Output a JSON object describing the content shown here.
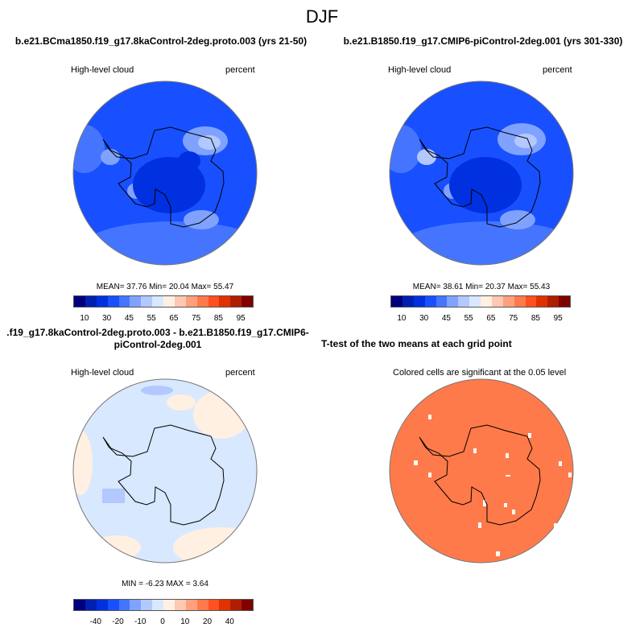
{
  "figure_title": "DJF",
  "colors": [
    "#00007f",
    "#0020b0",
    "#0030e0",
    "#1850ff",
    "#4575ff",
    "#80a2ff",
    "#b3c8ff",
    "#d8e8ff",
    "#fff0e2",
    "#ffc8b0",
    "#ffa07c",
    "#ff7a4a",
    "#ff5020",
    "#e03200",
    "#b01e00",
    "#800000"
  ],
  "panels": [
    {
      "title": "b.e21.BCma1850.f19_g17.8kaControl-2deg.proto.003 (yrs 21-50)",
      "left_label": "High-level cloud",
      "right_label": "percent",
      "stats": "MEAN=  37.76  Min=  20.04  Max=  55.47",
      "ticks": [
        "10",
        "30",
        "45",
        "55",
        "65",
        "75",
        "85",
        "95"
      ]
    },
    {
      "title": "b.e21.B1850.f19_g17.CMIP6-piControl-2deg.001 (yrs 301-330)",
      "left_label": "High-level cloud",
      "right_label": "percent",
      "stats": "MEAN=  38.61  Min=  20.37  Max=  55.43",
      "ticks": [
        "10",
        "30",
        "45",
        "55",
        "65",
        "75",
        "85",
        "95"
      ]
    },
    {
      "title": ".f19_g17.8kaControl-2deg.proto.003 - b.e21.B1850.f19_g17.CMIP6-piControl-2deg.001",
      "left_label": "High-level cloud",
      "right_label": "percent",
      "stats": "MIN =  -6.23 MAX =   3.64",
      "ticks": [
        "-40",
        "-20",
        "-10",
        "0",
        "10",
        "20",
        "40"
      ]
    },
    {
      "title": "T-test of the two means at each grid point",
      "left_label": "Colored cells are significant at the 0.05 level"
    }
  ]
}
